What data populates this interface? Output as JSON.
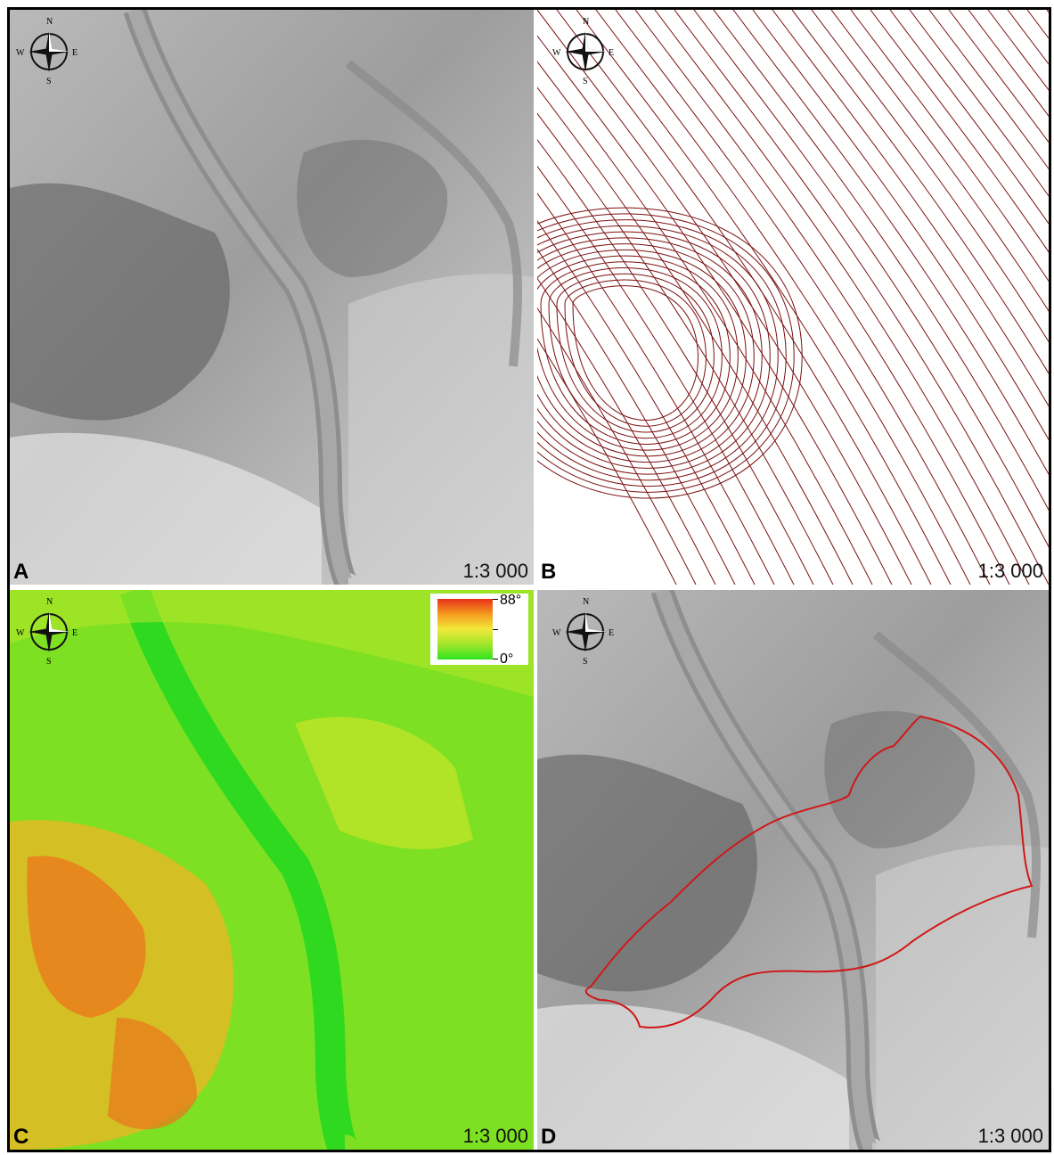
{
  "panels": [
    {
      "id": "A",
      "label": "A",
      "scale": "1:3 000",
      "type": "hillshade"
    },
    {
      "id": "B",
      "label": "B",
      "scale": "1:3 000",
      "type": "contour"
    },
    {
      "id": "C",
      "label": "C",
      "scale": "1:3 000",
      "type": "slope"
    },
    {
      "id": "D",
      "label": "D",
      "scale": "1:3 000",
      "type": "hillshade-outline"
    }
  ],
  "compass": {
    "n": "N",
    "s": "S",
    "e": "E",
    "w": "W"
  },
  "legend": {
    "max": "88°",
    "min": "0°"
  },
  "colors": {
    "outline": "#d01818",
    "contour": "#7a1010",
    "slope_low": "#2ee51f",
    "slope_high": "#e8321a"
  }
}
